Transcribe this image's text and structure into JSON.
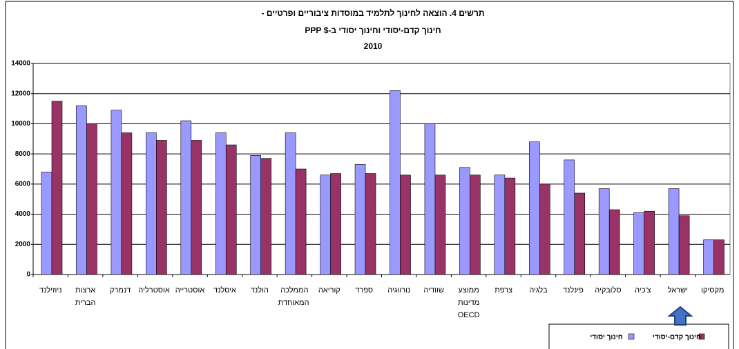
{
  "chart_data": {
    "type": "bar",
    "title": "תרשים 4.  הוצאה לחינוך לתלמיד במוסדות ציבוריים ופרטיים -",
    "subtitle": "חינוך קדם-יסודי וחינוך יסודי ב-$ PPP",
    "year": "2010",
    "categories": [
      "ניוזילנד",
      "ארצות הברית",
      "דנמרק",
      "אוסטרליה",
      "אוסטרייה",
      "איסלנד",
      "הולנד",
      "הממלכה המאוחדת",
      "קוריאה",
      "ספרד",
      "נורווגיה",
      "שוודיה",
      "ממוצע מדינות OECD",
      "צרפת",
      "בלגיה",
      "פינלנד",
      "סלובקיה",
      "צ'כיה",
      "ישראל",
      "מקסיקו"
    ],
    "series": [
      {
        "name": "חינוך יסודי",
        "color": "#9999ff",
        "values": [
          6800,
          11200,
          10900,
          9400,
          10200,
          9400,
          7900,
          9400,
          6600,
          7300,
          12200,
          10000,
          7100,
          6600,
          8800,
          7600,
          5700,
          4100,
          5700,
          2300
        ]
      },
      {
        "name": "חינוך קדם-יסודי",
        "color": "#993366",
        "values": [
          11500,
          10000,
          9400,
          8900,
          8900,
          8600,
          7700,
          7000,
          6700,
          6700,
          6600,
          6600,
          6600,
          6400,
          6000,
          5400,
          4300,
          4200,
          3900,
          2300
        ]
      }
    ],
    "ylim": [
      0,
      14000
    ],
    "yticks": [
      0,
      2000,
      4000,
      6000,
      8000,
      10000,
      12000,
      14000
    ],
    "grid": true
  }
}
